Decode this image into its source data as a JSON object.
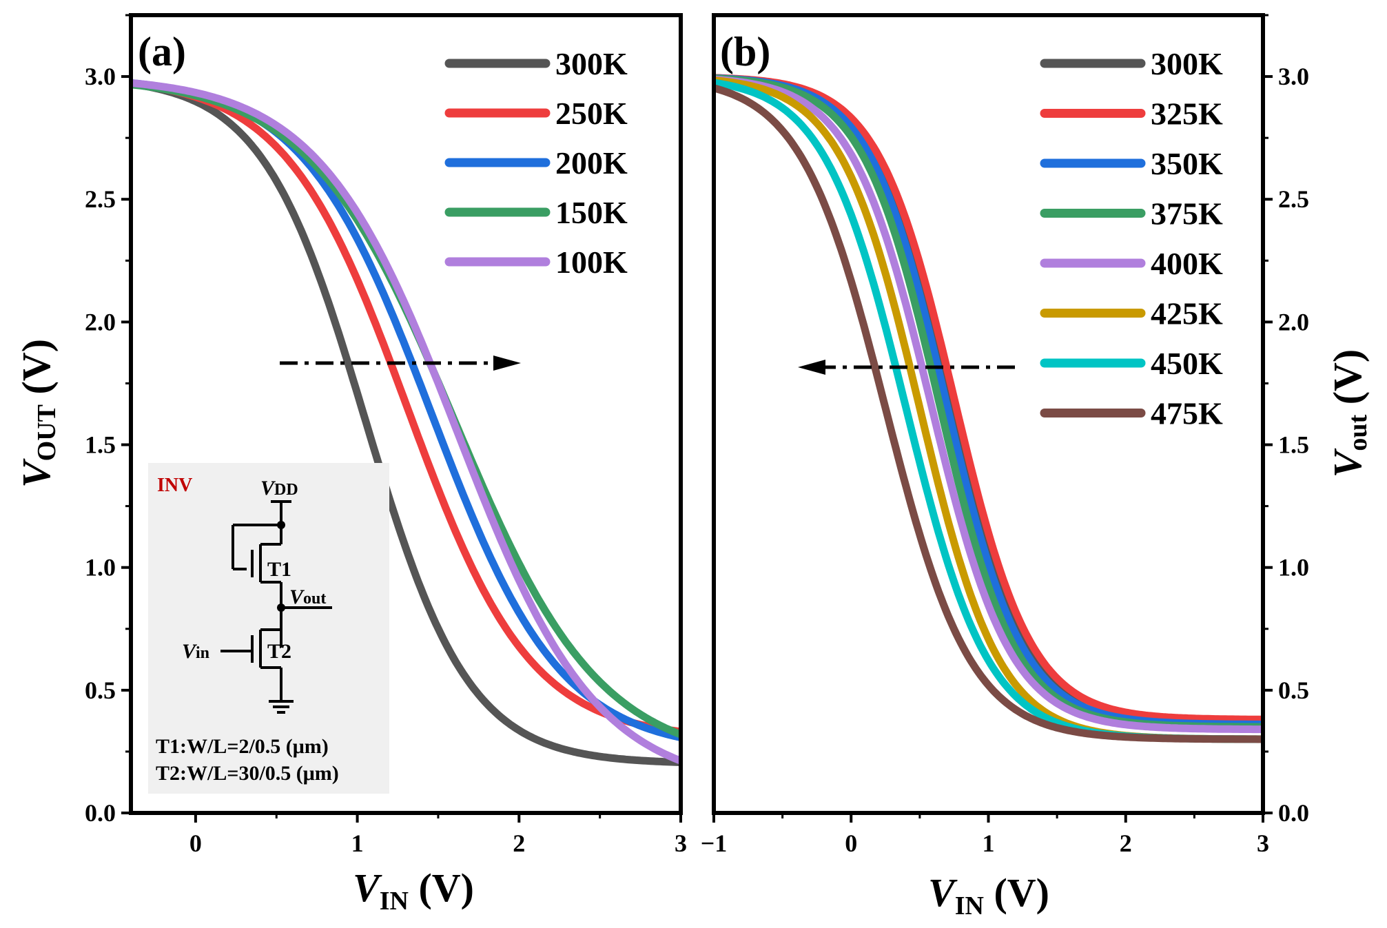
{
  "chart_data": [
    {
      "type": "line",
      "panel_label": "(a)",
      "xlabel": {
        "main": "V",
        "sub": "IN",
        "unit": " (V)"
      },
      "ylabel": {
        "main": "V",
        "sub": "OUT",
        "unit": " (V)"
      },
      "xlim": [
        -0.4,
        3.0
      ],
      "ylim": [
        0.0,
        3.25
      ],
      "xticks": [
        "0",
        "1",
        "2",
        "3"
      ],
      "yticks": [
        "0.0",
        "0.5",
        "1.0",
        "1.5",
        "2.0",
        "2.5",
        "3.0"
      ],
      "legend_position": "top-right",
      "arrow_direction": "right",
      "series": [
        {
          "name": "300K",
          "color": "#555555",
          "vth": 1.05,
          "kt": 0.32,
          "vmin": 0.2
        },
        {
          "name": "250K",
          "color": "#ee3d3d",
          "vth": 1.31,
          "kt": 0.38,
          "vmin": 0.3
        },
        {
          "name": "200K",
          "color": "#1f6fdc",
          "vth": 1.46,
          "kt": 0.4,
          "vmin": 0.25
        },
        {
          "name": "150K",
          "color": "#3a9e63",
          "vth": 1.6,
          "kt": 0.45,
          "vmin": 0.2
        },
        {
          "name": "100K",
          "color": "#b07fdd",
          "vth": 1.62,
          "kt": 0.43,
          "vmin": 0.1
        }
      ],
      "inset": {
        "title": "INV",
        "vdd": "V",
        "vdd_sub": "DD",
        "vout": "V",
        "vout_sub": "out",
        "vin": "V",
        "vin_sub": "in",
        "t1": "T1",
        "t2": "T2",
        "spec1": "T1:W/L=2/0.5 (μm)",
        "spec2": "T2:W/L=30/0.5 (μm)"
      }
    },
    {
      "type": "line",
      "panel_label": "(b)",
      "xlabel": {
        "main": "V",
        "sub": "IN",
        "unit": " (V)"
      },
      "ylabel": {
        "main": "V",
        "sub": "out",
        "unit": " (V)"
      },
      "xlim": [
        -1.0,
        3.0
      ],
      "ylim": [
        0.0,
        3.25
      ],
      "xticks": [
        "−1",
        "0",
        "1",
        "2",
        "3"
      ],
      "yticks": [
        "0.0",
        "0.5",
        "1.0",
        "1.5",
        "2.0",
        "2.5",
        "3.0"
      ],
      "legend_position": "top-right",
      "arrow_direction": "left",
      "series": [
        {
          "name": "300K",
          "color": "#555555",
          "vth": 0.73,
          "kt": 0.28,
          "vmin": 0.35
        },
        {
          "name": "325K",
          "color": "#ee3d3d",
          "vth": 0.75,
          "kt": 0.28,
          "vmin": 0.38
        },
        {
          "name": "350K",
          "color": "#1f6fdc",
          "vth": 0.69,
          "kt": 0.28,
          "vmin": 0.36
        },
        {
          "name": "375K",
          "color": "#3a9e63",
          "vth": 0.64,
          "kt": 0.28,
          "vmin": 0.35
        },
        {
          "name": "400K",
          "color": "#b07fdd",
          "vth": 0.58,
          "kt": 0.29,
          "vmin": 0.34
        },
        {
          "name": "425K",
          "color": "#c99a00",
          "vth": 0.5,
          "kt": 0.29,
          "vmin": 0.3
        },
        {
          "name": "450K",
          "color": "#00c4c4",
          "vth": 0.4,
          "kt": 0.3,
          "vmin": 0.3
        },
        {
          "name": "475K",
          "color": "#7b4b45",
          "vth": 0.25,
          "kt": 0.31,
          "vmin": 0.3
        }
      ]
    }
  ]
}
